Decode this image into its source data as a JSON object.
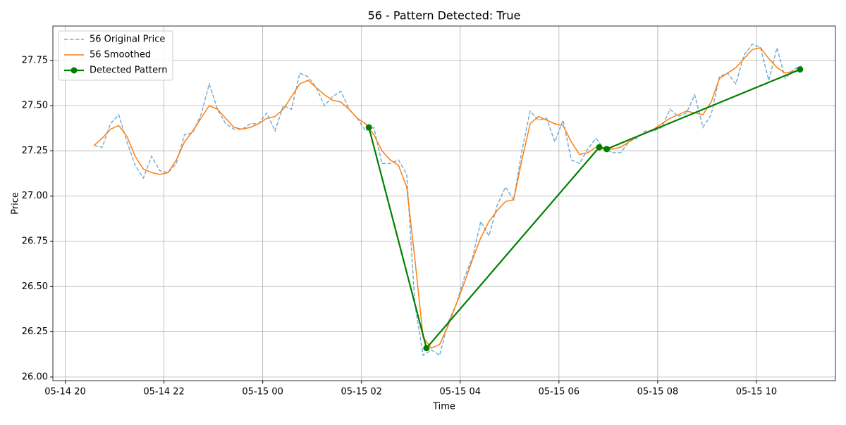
{
  "chart_data": {
    "type": "line",
    "title": "56 - Pattern Detected: True",
    "x_label": "Time",
    "y_label": "Price",
    "x": [
      "05-14 20:35",
      "05-14 20:45",
      "05-14 20:55",
      "05-14 21:05",
      "05-14 21:15",
      "05-14 21:25",
      "05-14 21:35",
      "05-14 21:45",
      "05-14 21:55",
      "05-14 22:05",
      "05-14 22:15",
      "05-14 22:25",
      "05-14 22:35",
      "05-14 22:45",
      "05-14 22:55",
      "05-14 23:05",
      "05-14 23:15",
      "05-14 23:25",
      "05-14 23:35",
      "05-14 23:45",
      "05-14 23:55",
      "05-15 00:05",
      "05-15 00:15",
      "05-15 00:25",
      "05-15 00:35",
      "05-15 00:45",
      "05-15 00:55",
      "05-15 01:05",
      "05-15 01:15",
      "05-15 01:25",
      "05-15 01:35",
      "05-15 01:45",
      "05-15 01:55",
      "05-15 02:05",
      "05-15 02:15",
      "05-15 02:25",
      "05-15 02:35",
      "05-15 02:45",
      "05-15 02:55",
      "05-15 03:05",
      "05-15 03:15",
      "05-15 03:25",
      "05-15 03:35",
      "05-15 03:45",
      "05-15 03:55",
      "05-15 04:05",
      "05-15 04:15",
      "05-15 04:25",
      "05-15 04:35",
      "05-15 04:45",
      "05-15 04:55",
      "05-15 05:05",
      "05-15 05:15",
      "05-15 05:25",
      "05-15 05:35",
      "05-15 05:45",
      "05-15 05:55",
      "05-15 06:05",
      "05-15 06:15",
      "05-15 06:25",
      "05-15 06:35",
      "05-15 06:45",
      "05-15 06:55",
      "05-15 07:05",
      "05-15 07:15",
      "05-15 07:25",
      "05-15 07:35",
      "05-15 07:45",
      "05-15 07:55",
      "05-15 08:05",
      "05-15 08:15",
      "05-15 08:25",
      "05-15 08:35",
      "05-15 08:45",
      "05-15 08:55",
      "05-15 09:05",
      "05-15 09:15",
      "05-15 09:25",
      "05-15 09:35",
      "05-15 09:45",
      "05-15 09:55",
      "05-15 10:05",
      "05-15 10:15",
      "05-15 10:25",
      "05-15 10:35",
      "05-15 10:45",
      "05-15 10:55"
    ],
    "series": [
      {
        "name": "56 Original Price",
        "color": "#1f77b4",
        "linestyle": "dashed",
        "opacity": 0.6,
        "values": [
          27.28,
          27.27,
          27.4,
          27.45,
          27.3,
          27.17,
          27.1,
          27.22,
          27.14,
          27.13,
          27.18,
          27.34,
          27.35,
          27.45,
          27.62,
          27.48,
          27.4,
          27.37,
          27.37,
          27.4,
          27.4,
          27.46,
          27.36,
          27.5,
          27.48,
          27.68,
          27.66,
          27.6,
          27.5,
          27.55,
          27.58,
          27.48,
          27.43,
          27.36,
          27.38,
          27.18,
          27.18,
          27.2,
          27.12,
          26.4,
          26.12,
          26.15,
          26.12,
          26.3,
          26.4,
          26.55,
          26.66,
          26.86,
          26.78,
          26.95,
          27.05,
          26.98,
          27.25,
          27.47,
          27.42,
          27.43,
          27.3,
          27.42,
          27.2,
          27.18,
          27.26,
          27.32,
          27.26,
          27.24,
          27.24,
          27.3,
          27.32,
          27.36,
          27.36,
          27.38,
          27.48,
          27.44,
          27.46,
          27.56,
          27.38,
          27.45,
          27.66,
          27.68,
          27.62,
          27.78,
          27.84,
          27.82,
          27.64,
          27.82,
          27.65,
          27.7,
          27.72
        ]
      },
      {
        "name": "56 Smoothed",
        "color": "#ff7f0e",
        "linestyle": "solid",
        "values": [
          27.28,
          27.32,
          27.37,
          27.39,
          27.33,
          27.22,
          27.15,
          27.13,
          27.12,
          27.13,
          27.2,
          27.3,
          27.36,
          27.43,
          27.5,
          27.48,
          27.43,
          27.38,
          27.37,
          27.38,
          27.4,
          27.43,
          27.44,
          27.48,
          27.55,
          27.62,
          27.64,
          27.6,
          27.56,
          27.53,
          27.52,
          27.48,
          27.43,
          27.4,
          27.34,
          27.25,
          27.2,
          27.17,
          27.05,
          26.65,
          26.22,
          26.16,
          26.18,
          26.28,
          26.4,
          26.52,
          26.65,
          26.77,
          26.86,
          26.92,
          26.97,
          26.98,
          27.2,
          27.4,
          27.44,
          27.42,
          27.4,
          27.39,
          27.3,
          27.23,
          27.24,
          27.27,
          27.26,
          27.26,
          27.27,
          27.3,
          27.33,
          27.35,
          27.37,
          27.4,
          27.43,
          27.45,
          27.47,
          27.46,
          27.45,
          27.52,
          27.65,
          27.68,
          27.71,
          27.76,
          27.81,
          27.82,
          27.76,
          27.71,
          27.68,
          27.69,
          27.7
        ]
      },
      {
        "name": "Detected Pattern",
        "color": "#008000",
        "linestyle": "solid",
        "marker": "o",
        "x": [
          "05-15 02:09",
          "05-15 03:19",
          "05-15 06:49",
          "05-15 06:58",
          "05-15 10:53"
        ],
        "values": [
          27.38,
          26.16,
          27.27,
          27.26,
          27.7
        ]
      }
    ],
    "xlim": [
      "05-14 19:45",
      "05-15 11:36"
    ],
    "xticks": [
      "05-14 20",
      "05-14 22",
      "05-15 00",
      "05-15 02",
      "05-15 04",
      "05-15 06",
      "05-15 08",
      "05-15 10"
    ],
    "ylim": [
      25.98,
      27.94
    ],
    "yticks": [
      {
        "value": 26,
        "label": "26.00"
      },
      {
        "value": 26.25,
        "label": "26.25"
      },
      {
        "value": 26.5,
        "label": "26.50"
      },
      {
        "value": 26.75,
        "label": "26.75"
      },
      {
        "value": 27,
        "label": "27.00"
      },
      {
        "value": 27.25,
        "label": "27.25"
      },
      {
        "value": 27.5,
        "label": "27.50"
      },
      {
        "value": 27.75,
        "label": "27.75"
      }
    ],
    "grid": true,
    "legend": "upper left"
  }
}
